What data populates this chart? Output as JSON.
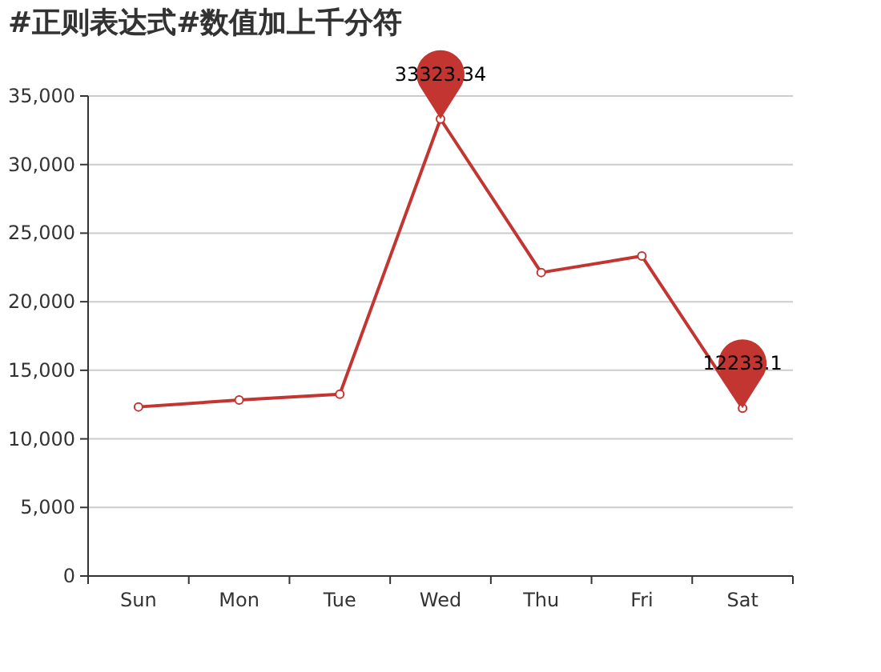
{
  "chart_data": {
    "type": "line",
    "title": "#正则表达式#数值加上千分符",
    "categories": [
      "Sun",
      "Mon",
      "Tue",
      "Wed",
      "Thu",
      "Fri",
      "Sat"
    ],
    "series": [
      {
        "color": "#c23531",
        "values": [
          12330,
          12830,
          13260,
          33323.34,
          22130,
          23330,
          12233.1
        ]
      }
    ],
    "ylim": [
      0,
      35000
    ],
    "yticks": [
      {
        "value": 0,
        "label": "0"
      },
      {
        "value": 5000,
        "label": "5,000"
      },
      {
        "value": 10000,
        "label": "10,000"
      },
      {
        "value": 15000,
        "label": "15,000"
      },
      {
        "value": 20000,
        "label": "20,000"
      },
      {
        "value": 25000,
        "label": "25,000"
      },
      {
        "value": 30000,
        "label": "30,000"
      },
      {
        "value": 35000,
        "label": "35,000"
      }
    ],
    "annotations": [
      {
        "text": "33323.34",
        "x": "Wed",
        "y": 33323.34
      },
      {
        "text": "12233.1",
        "x": "Sat",
        "y": 12233.1
      }
    ],
    "grid": "y",
    "marker": "circle",
    "line_style": "solid"
  }
}
